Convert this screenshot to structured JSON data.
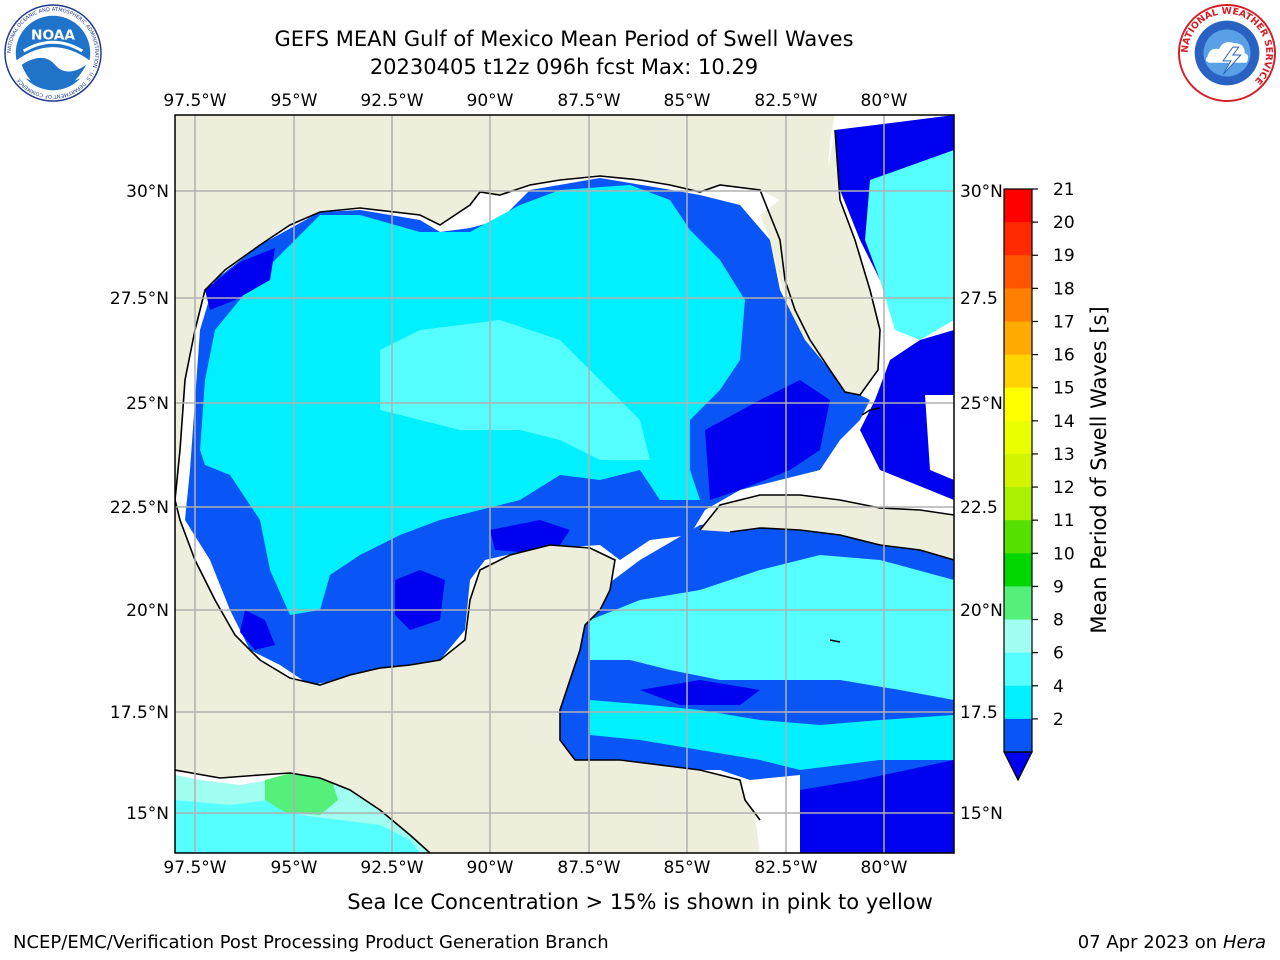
{
  "header": {
    "title_line1": "GEFS MEAN Gulf of Mexico Mean Period of Swell Waves",
    "title_line2": "20230405 t12z 096h fcst   Max: 10.29"
  },
  "logos": {
    "left": {
      "icon": "noaa-logo-icon",
      "text": "NOAA",
      "ring_text": "NATIONAL OCEANIC AND ATMOSPHERIC ADMINISTRATION · U.S. DEPARTMENT OF COMMERCE"
    },
    "right": {
      "icon": "nws-logo-icon",
      "ring_text": "NATIONAL WEATHER SERVICE"
    }
  },
  "map": {
    "lon_labels_top": [
      "97.5°W",
      "95°W",
      "92.5°W",
      "90°W",
      "87.5°W",
      "85°W",
      "82.5°W",
      "80°W"
    ],
    "lon_labels_bottom": [
      "97.5°W",
      "95°W",
      "92.5°W",
      "90°W",
      "87.5°W",
      "85°W",
      "82.5°W",
      "80°W"
    ],
    "lat_labels_left": [
      "30°N",
      "27.5°N",
      "25°N",
      "22.5°N",
      "20°N",
      "17.5°N",
      "15°N"
    ],
    "lat_labels_right": [
      "30°N",
      "27.5",
      "25°N",
      "22.5",
      "20°N",
      "17.5",
      "15°N"
    ],
    "colors": {
      "land": "#eeeedc",
      "band_2_4": "#0a55f5",
      "band_4_6": "#00f0ff",
      "band_6_8": "#55ffff",
      "band_8_9": "#a0fff0",
      "band_lt2": "#0000f0",
      "band_9_10": "#55f07a",
      "grid": "#b0b0b0"
    }
  },
  "colorbar": {
    "label": "Mean Period of Swell Waves [s]",
    "ticks": [
      "21",
      "20",
      "19",
      "18",
      "17",
      "16",
      "15",
      "14",
      "13",
      "12",
      "11",
      "10",
      "9",
      "8",
      "6",
      "4",
      "2"
    ],
    "colors": [
      "#ff0000",
      "#ff2a00",
      "#ff5500",
      "#ff8000",
      "#ffaa00",
      "#ffd400",
      "#ffff00",
      "#eaff00",
      "#d4f500",
      "#aaf000",
      "#55e000",
      "#00d700",
      "#55f07a",
      "#a0fff0",
      "#55ffff",
      "#00f0ff",
      "#0a55f5"
    ],
    "under_color": "#0000f0"
  },
  "footer": {
    "sea_ice_note": "Sea Ice Concentration > 15% is shown in pink to yellow",
    "left": "NCEP/EMC/Verification Post Processing Product Generation Branch",
    "date": "07 Apr 2023 on ",
    "host": "Hera"
  }
}
